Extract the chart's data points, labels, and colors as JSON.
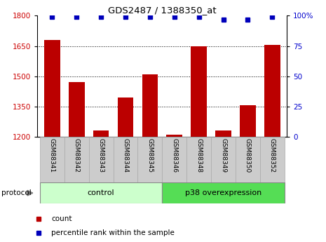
{
  "title": "GDS2487 / 1388350_at",
  "samples": [
    "GSM88341",
    "GSM88342",
    "GSM88343",
    "GSM88344",
    "GSM88345",
    "GSM88346",
    "GSM88348",
    "GSM88349",
    "GSM88350",
    "GSM88352"
  ],
  "counts": [
    1680,
    1470,
    1230,
    1395,
    1510,
    1210,
    1650,
    1230,
    1355,
    1655
  ],
  "percentile_ranks": [
    99,
    99,
    99,
    99,
    99,
    99,
    99,
    97,
    97,
    99
  ],
  "ylim_left": [
    1200,
    1800
  ],
  "ylim_right": [
    0,
    100
  ],
  "yticks_left": [
    1200,
    1350,
    1500,
    1650,
    1800
  ],
  "yticks_right": [
    0,
    25,
    50,
    75,
    100
  ],
  "bar_color": "#bb0000",
  "dot_color": "#0000bb",
  "control_samples": 5,
  "control_label": "control",
  "overexpression_label": "p38 overexpression",
  "protocol_label": "protocol",
  "legend_count_label": "count",
  "legend_percentile_label": "percentile rank within the sample",
  "control_bg": "#ccffcc",
  "overexpression_bg": "#55dd55",
  "xlabel_color": "#cc0000",
  "ylabel_right_color": "#0000cc",
  "grid_color": "black",
  "sample_box_bg": "#cccccc",
  "sample_box_edge": "#aaaaaa",
  "fig_bg": "#ffffff"
}
